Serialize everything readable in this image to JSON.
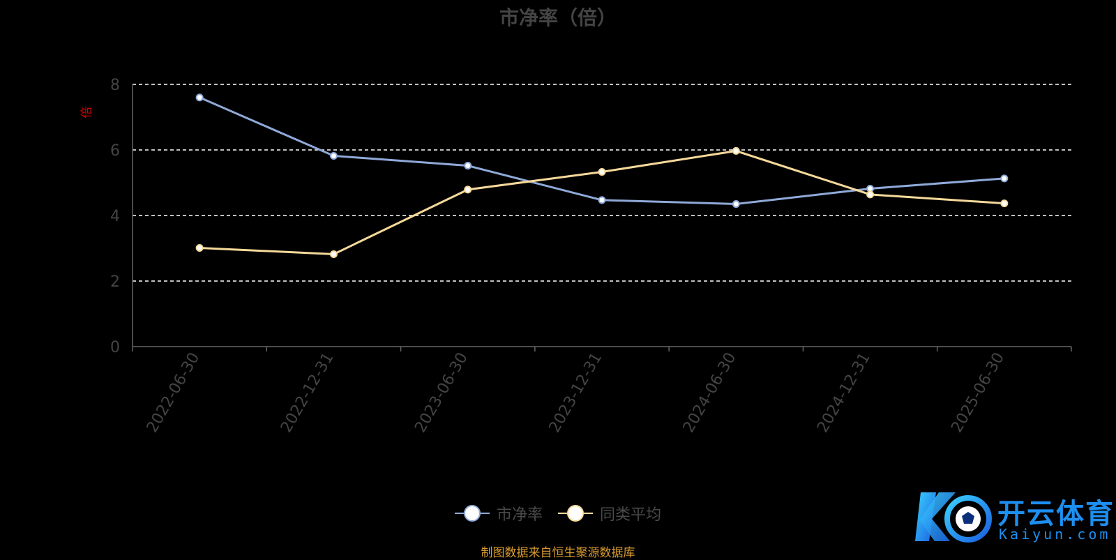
{
  "title": "市净率（倍）",
  "unit_label": "倍",
  "legend": [
    {
      "label": "市净率",
      "color": "#8fa9d8"
    },
    {
      "label": "同类平均",
      "color": "#f5d99a"
    }
  ],
  "source_note": "制图数据来自恒生聚源数据库",
  "logo": {
    "cn": "开云体育",
    "en": "Kaiyun.com"
  },
  "chart_data": {
    "type": "line",
    "title": "市净率（倍）",
    "ylabel": "倍",
    "x": [
      "2022-06-30",
      "2022-12-31",
      "2023-06-30",
      "2023-12-31",
      "2024-06-30",
      "2024-12-31",
      "2025-06-30"
    ],
    "ylim": [
      0,
      8
    ],
    "yticks": [
      0,
      2,
      4,
      6,
      8
    ],
    "grid": true,
    "legend_position": "bottom",
    "series": [
      {
        "name": "市净率",
        "color": "#8fa9d8",
        "values": [
          7.6,
          5.82,
          5.52,
          4.47,
          4.35,
          4.82,
          5.13
        ]
      },
      {
        "name": "同类平均",
        "color": "#f5d99a",
        "values": [
          3.01,
          2.82,
          4.79,
          5.33,
          5.97,
          4.64,
          4.37
        ]
      }
    ]
  }
}
